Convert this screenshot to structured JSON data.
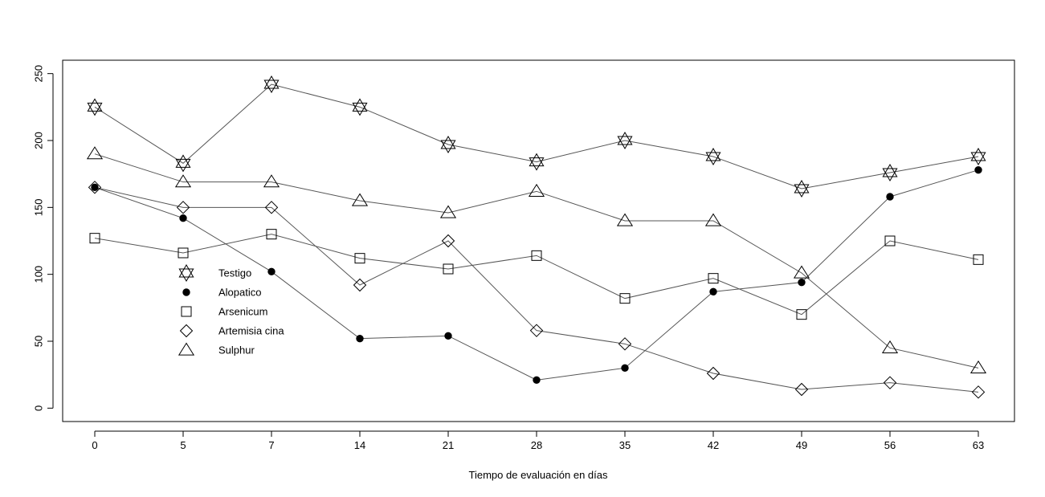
{
  "chart_data": {
    "type": "line",
    "title": "",
    "xlabel": "Tiempo de evaluación en días",
    "ylabel": "",
    "categories": [
      "0",
      "5",
      "7",
      "14",
      "21",
      "28",
      "35",
      "42",
      "49",
      "56",
      "63"
    ],
    "ylim": [
      -10,
      260
    ],
    "yticks": [
      0,
      50,
      100,
      150,
      200,
      250
    ],
    "grid": false,
    "legend_position": "center-left",
    "series": [
      {
        "name": "Testigo",
        "marker": "star-of-david",
        "values": [
          225,
          183,
          242,
          225,
          197,
          184,
          200,
          188,
          164,
          176,
          188
        ]
      },
      {
        "name": "Alopatico",
        "marker": "filled-circle",
        "values": [
          165,
          142,
          102,
          52,
          54,
          21,
          30,
          87,
          94,
          158,
          178
        ]
      },
      {
        "name": "Arsenicum",
        "marker": "open-square",
        "values": [
          127,
          116,
          130,
          112,
          104,
          114,
          82,
          97,
          70,
          125,
          111
        ]
      },
      {
        "name": "Artemisia cina",
        "marker": "open-diamond",
        "values": [
          165,
          150,
          150,
          92,
          125,
          58,
          48,
          26,
          14,
          19,
          12
        ]
      },
      {
        "name": "Sulphur",
        "marker": "open-triangle",
        "values": [
          190,
          169,
          169,
          155,
          146,
          162,
          140,
          140,
          101,
          45,
          30
        ]
      }
    ]
  }
}
